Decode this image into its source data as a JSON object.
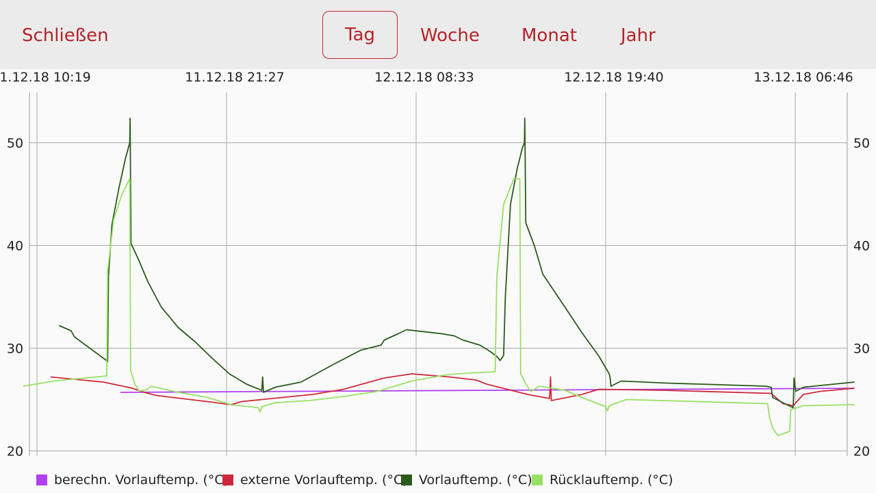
{
  "toolbar": {
    "close_label": "Schließen",
    "tabs": [
      {
        "label": "Tag",
        "selected": true
      },
      {
        "label": "Woche",
        "selected": false
      },
      {
        "label": "Monat",
        "selected": false
      },
      {
        "label": "Jahr",
        "selected": false
      }
    ]
  },
  "colors": {
    "accent": "#b3242a",
    "berechn": "#b040f0",
    "externe": "#d0283a",
    "vorlauf": "#2a5a1c",
    "ruecklauf": "#98e066"
  },
  "chart_data": {
    "type": "line",
    "x_tick_labels": [
      "1.12.18 10:19",
      "11.12.18 21:27",
      "12.12.18 08:33",
      "12.12.18 19:40",
      "13.12.18 06:46"
    ],
    "y_ticks": [
      20,
      30,
      40,
      50
    ],
    "ylim": [
      19.5,
      54.9
    ],
    "xlim_hours": [
      -0.8,
      48.0
    ],
    "x_note_hours_from_first_tick": true,
    "grid": true,
    "legend_position": "bottom",
    "series": [
      {
        "name": "berechn. Vorlauftemp. (°C)",
        "color": "#b040f0",
        "points": [
          [
            4.9,
            25.7
          ],
          [
            48.0,
            26.1
          ]
        ]
      },
      {
        "name": "externe Vorlauftemp. (°C)",
        "color": "#d0283a",
        "points": [
          [
            0.8,
            27.2
          ],
          [
            3.9,
            26.7
          ],
          [
            5.6,
            26.1
          ],
          [
            6.3,
            25.7
          ],
          [
            7.0,
            25.4
          ],
          [
            10.0,
            24.8
          ],
          [
            11.4,
            24.5
          ],
          [
            12.0,
            24.8
          ],
          [
            13.2,
            25.0
          ],
          [
            16.2,
            25.5
          ],
          [
            18.0,
            26.0
          ],
          [
            20.4,
            27.1
          ],
          [
            22.0,
            27.5
          ],
          [
            24.2,
            27.2
          ],
          [
            25.8,
            26.9
          ],
          [
            26.4,
            26.5
          ],
          [
            28.8,
            25.5
          ],
          [
            30.1,
            25.1
          ],
          [
            30.15,
            27.2
          ],
          [
            30.2,
            24.9
          ],
          [
            32.0,
            25.5
          ],
          [
            33.0,
            26.0
          ],
          [
            36.8,
            25.9
          ],
          [
            43.1,
            25.6
          ],
          [
            43.8,
            24.6
          ],
          [
            44.4,
            24.4
          ],
          [
            45.0,
            25.5
          ],
          [
            46.0,
            25.8
          ],
          [
            48.0,
            26.1
          ]
        ]
      },
      {
        "name": "Vorlauftemp. (°C)",
        "color": "#2a5a1c",
        "points": [
          [
            1.3,
            32.2
          ],
          [
            2.0,
            31.7
          ],
          [
            2.2,
            31.1
          ],
          [
            4.0,
            28.9
          ],
          [
            4.15,
            28.7
          ],
          [
            4.2,
            37.0
          ],
          [
            4.4,
            42.0
          ],
          [
            4.8,
            45.5
          ],
          [
            5.2,
            48.5
          ],
          [
            5.45,
            50.0
          ],
          [
            5.47,
            52.4
          ],
          [
            5.52,
            40.2
          ],
          [
            6.0,
            38.5
          ],
          [
            6.5,
            36.5
          ],
          [
            7.3,
            34.0
          ],
          [
            8.3,
            32.0
          ],
          [
            9.3,
            30.6
          ],
          [
            10.3,
            29.0
          ],
          [
            11.3,
            27.5
          ],
          [
            12.3,
            26.5
          ],
          [
            13.2,
            25.9
          ],
          [
            13.25,
            27.2
          ],
          [
            13.3,
            25.7
          ],
          [
            14.0,
            26.2
          ],
          [
            15.5,
            26.7
          ],
          [
            17.5,
            28.5
          ],
          [
            19.0,
            29.8
          ],
          [
            20.2,
            30.3
          ],
          [
            20.4,
            30.8
          ],
          [
            21.2,
            31.4
          ],
          [
            21.7,
            31.8
          ],
          [
            23.8,
            31.4
          ],
          [
            24.5,
            31.2
          ],
          [
            25.0,
            30.8
          ],
          [
            26.0,
            30.3
          ],
          [
            26.5,
            29.8
          ],
          [
            27.0,
            29.2
          ],
          [
            27.2,
            28.8
          ],
          [
            27.4,
            29.3
          ],
          [
            27.5,
            35.0
          ],
          [
            27.8,
            44.0
          ],
          [
            28.2,
            47.5
          ],
          [
            28.5,
            49.5
          ],
          [
            28.62,
            50.0
          ],
          [
            28.64,
            52.4
          ],
          [
            28.7,
            42.2
          ],
          [
            29.2,
            40.0
          ],
          [
            29.7,
            37.2
          ],
          [
            31.0,
            34.0
          ],
          [
            32.0,
            31.5
          ],
          [
            33.0,
            29.2
          ],
          [
            33.6,
            27.5
          ],
          [
            33.65,
            27.1
          ],
          [
            33.7,
            26.3
          ],
          [
            34.3,
            26.8
          ],
          [
            37.0,
            26.6
          ],
          [
            42.8,
            26.3
          ],
          [
            43.1,
            26.2
          ],
          [
            43.2,
            25.2
          ],
          [
            43.9,
            24.6
          ],
          [
            44.4,
            24.2
          ],
          [
            44.45,
            27.1
          ],
          [
            44.55,
            25.8
          ],
          [
            45.0,
            26.2
          ],
          [
            48.0,
            26.7
          ]
        ]
      },
      {
        "name": "Rücklauftemp. (°C)",
        "color": "#98e066",
        "points": [
          [
            -0.8,
            26.3
          ],
          [
            1.0,
            26.8
          ],
          [
            4.1,
            27.3
          ],
          [
            4.15,
            37.5
          ],
          [
            4.5,
            42.5
          ],
          [
            5.0,
            45.0
          ],
          [
            5.45,
            46.5
          ],
          [
            5.5,
            27.8
          ],
          [
            5.75,
            26.5
          ],
          [
            6.0,
            25.8
          ],
          [
            6.5,
            26.0
          ],
          [
            6.7,
            26.3
          ],
          [
            8.3,
            25.7
          ],
          [
            10.0,
            25.2
          ],
          [
            11.4,
            24.5
          ],
          [
            13.0,
            24.2
          ],
          [
            13.1,
            23.8
          ],
          [
            13.2,
            24.3
          ],
          [
            14.0,
            24.7
          ],
          [
            16.0,
            24.9
          ],
          [
            18.0,
            25.3
          ],
          [
            20.0,
            25.8
          ],
          [
            22.0,
            26.8
          ],
          [
            24.0,
            27.4
          ],
          [
            25.5,
            27.6
          ],
          [
            26.9,
            27.7
          ],
          [
            27.0,
            37.0
          ],
          [
            27.4,
            44.0
          ],
          [
            28.0,
            46.5
          ],
          [
            28.35,
            46.5
          ],
          [
            28.4,
            27.5
          ],
          [
            28.7,
            26.5
          ],
          [
            29.0,
            25.8
          ],
          [
            29.5,
            26.3
          ],
          [
            31.0,
            25.9
          ],
          [
            32.0,
            25.2
          ],
          [
            33.4,
            24.3
          ],
          [
            33.5,
            23.9
          ],
          [
            33.6,
            24.4
          ],
          [
            34.6,
            25.0
          ],
          [
            42.9,
            24.6
          ],
          [
            43.0,
            23.3
          ],
          [
            43.2,
            22.2
          ],
          [
            43.5,
            21.5
          ],
          [
            44.2,
            21.9
          ],
          [
            44.25,
            24.0
          ],
          [
            45.0,
            24.4
          ],
          [
            48.0,
            24.5
          ]
        ]
      }
    ]
  }
}
